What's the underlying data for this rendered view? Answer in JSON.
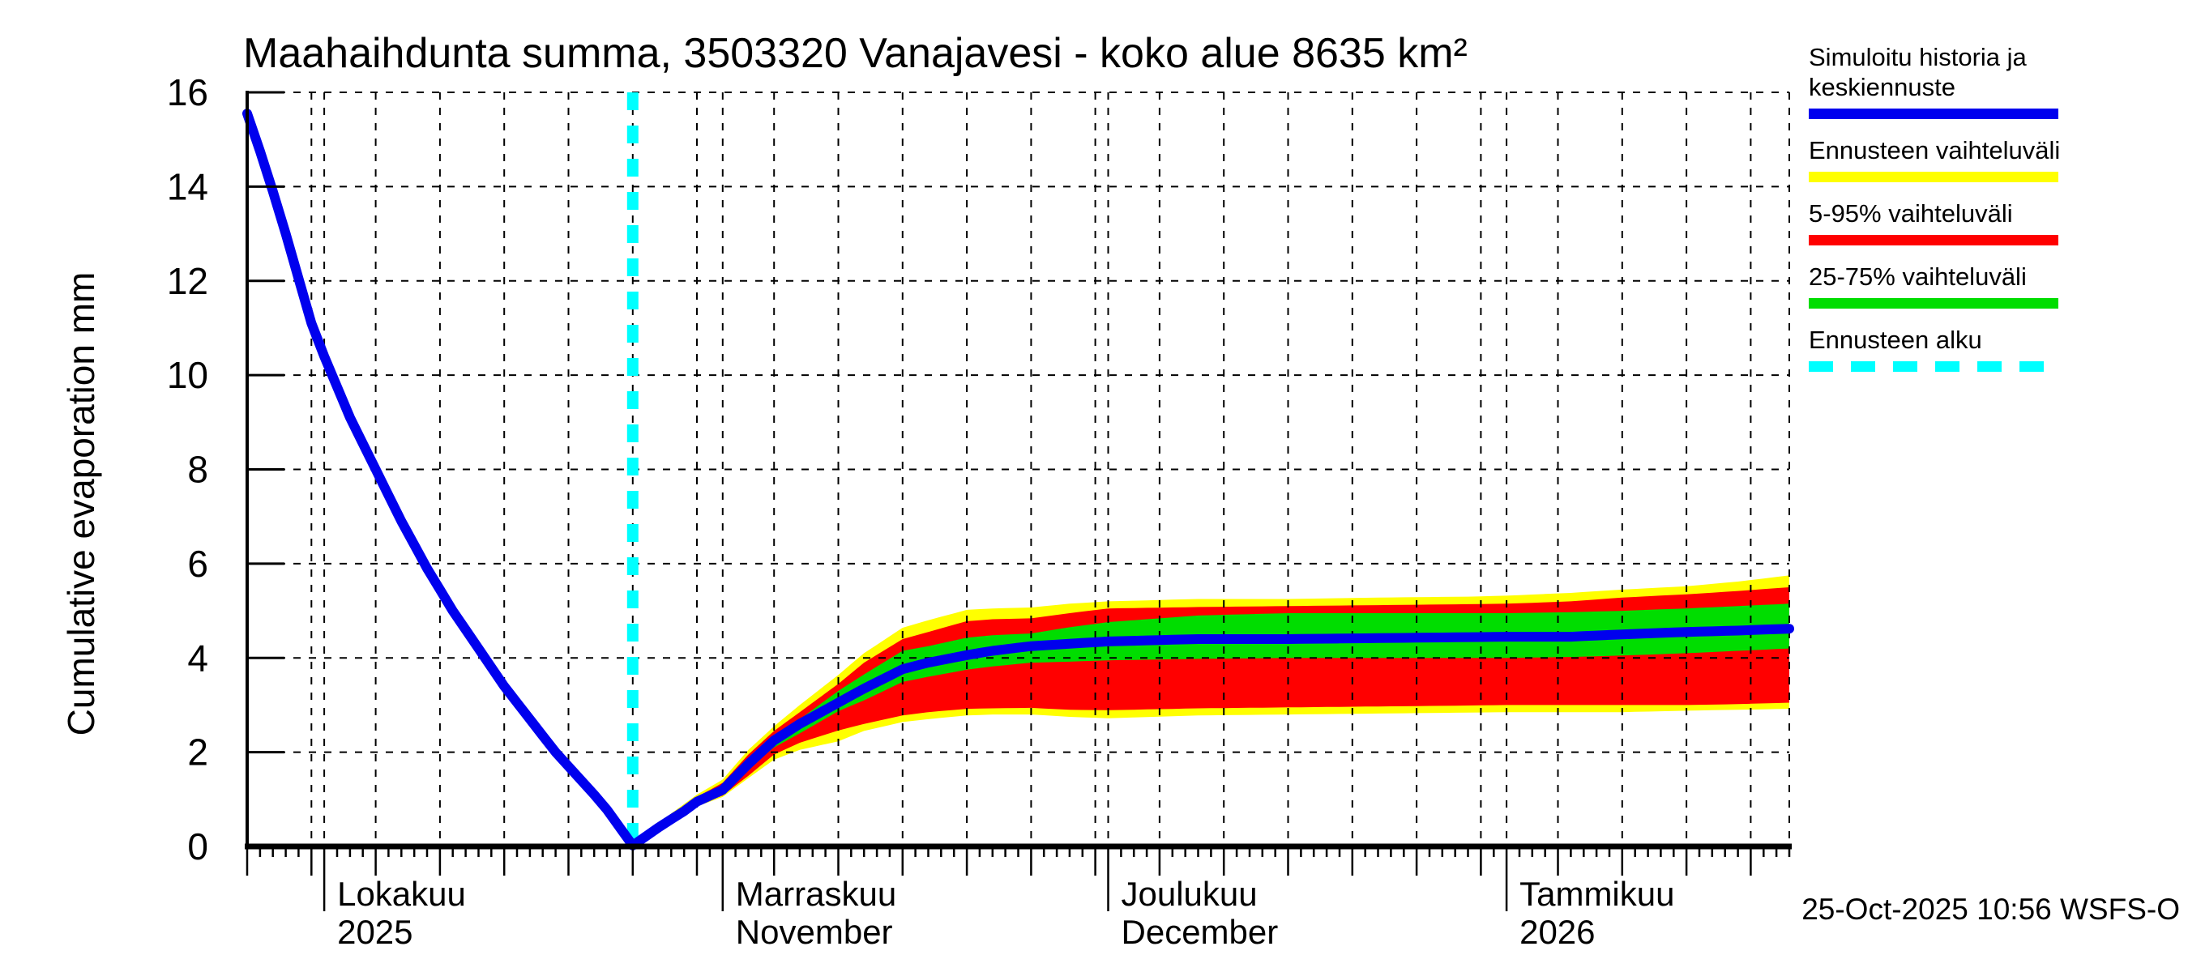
{
  "title": "Maahaihdunta summa, 3503320 Vanajavesi - koko alue 8635 km²",
  "y_axis_label": "Cumulative evaporation  mm",
  "timestamp": "25-Oct-2025 10:56 WSFS-O",
  "colors": {
    "median_line": "#0000ee",
    "range_band": "#ffff00",
    "p5_95_band": "#ff0000",
    "p25_75_band": "#00dd00",
    "forecast_start_line": "#00ffff",
    "grid": "#000000",
    "background": "#ffffff"
  },
  "legend": {
    "items": [
      {
        "label_line1": "Simuloitu historia ja",
        "label_line2": "keskiennuste",
        "color": "#0000ee",
        "style": "solid"
      },
      {
        "label_line1": "Ennusteen vaihteluväli",
        "label_line2": "",
        "color": "#ffff00",
        "style": "solid"
      },
      {
        "label_line1": "5-95% vaihteluväli",
        "label_line2": "",
        "color": "#ff0000",
        "style": "solid"
      },
      {
        "label_line1": "25-75% vaihteluväli",
        "label_line2": "",
        "color": "#00dd00",
        "style": "solid"
      },
      {
        "label_line1": "Ennusteen alku",
        "label_line2": "",
        "color": "#00ffff",
        "style": "dashed"
      }
    ]
  },
  "chart_data": {
    "type": "line",
    "title": "Maahaihdunta summa, 3503320 Vanajavesi - koko alue 8635 km²",
    "ylabel": "Cumulative evaporation mm",
    "ylim": [
      0,
      16
    ],
    "yticks": [
      0,
      2,
      4,
      6,
      8,
      10,
      12,
      14,
      16
    ],
    "x_start_date": "2025-09-25",
    "x_end_date": "2026-01-23",
    "x_total_days": 120,
    "forecast_start_day": 30,
    "grid": true,
    "months": [
      {
        "label_line1": "Lokakuu",
        "label_line2": "2025",
        "day": 6
      },
      {
        "label_line1": "Marraskuu",
        "label_line2": "November",
        "day": 37
      },
      {
        "label_line1": "Joulukuu",
        "label_line2": "December",
        "day": 67
      },
      {
        "label_line1": "Tammikuu",
        "label_line2": "2026",
        "day": 98
      }
    ],
    "history_median_daily": [
      15.55,
      14.75,
      13.9,
      13.0,
      12.05,
      11.1,
      10.4,
      9.75,
      9.1,
      8.55,
      8.0,
      7.45,
      6.9,
      6.4,
      5.9,
      5.45,
      5.0,
      4.6,
      4.2,
      3.8,
      3.4,
      3.05,
      2.7,
      2.35,
      2.0,
      1.7,
      1.4,
      1.1,
      0.78,
      0.4,
      0.02
    ],
    "forecast_median_knots": {
      "days": [
        30,
        32,
        34,
        35,
        37,
        39,
        41,
        43,
        46,
        48,
        51,
        53,
        56,
        58,
        61,
        64,
        67,
        74,
        81,
        88,
        95,
        98,
        103,
        107,
        112,
        116,
        120
      ],
      "values": [
        0.02,
        0.4,
        0.75,
        0.95,
        1.2,
        1.75,
        2.25,
        2.6,
        3.05,
        3.35,
        3.76,
        3.9,
        4.06,
        4.15,
        4.25,
        4.3,
        4.35,
        4.4,
        4.4,
        4.42,
        4.44,
        4.45,
        4.45,
        4.5,
        4.55,
        4.58,
        4.62
      ]
    },
    "bands_knots": {
      "days": [
        30,
        33,
        35,
        37,
        39,
        41,
        43,
        46,
        48,
        51,
        53,
        56,
        58,
        61,
        64,
        67,
        74,
        81,
        88,
        95,
        98,
        103,
        107,
        112,
        116,
        120
      ],
      "min": [
        0.02,
        0.5,
        0.85,
        1.05,
        1.45,
        1.84,
        2.05,
        2.23,
        2.45,
        2.64,
        2.7,
        2.78,
        2.8,
        2.8,
        2.75,
        2.72,
        2.78,
        2.8,
        2.82,
        2.84,
        2.85,
        2.85,
        2.85,
        2.88,
        2.9,
        2.92
      ],
      "p5": [
        0.02,
        0.52,
        0.88,
        1.08,
        1.5,
        1.95,
        2.2,
        2.46,
        2.6,
        2.78,
        2.85,
        2.92,
        2.93,
        2.94,
        2.9,
        2.89,
        2.93,
        2.95,
        2.97,
        2.99,
        3.0,
        3.0,
        3.0,
        3.0,
        3.02,
        3.05
      ],
      "p25": [
        0.02,
        0.55,
        0.92,
        1.15,
        1.65,
        2.1,
        2.4,
        2.87,
        3.1,
        3.49,
        3.6,
        3.75,
        3.82,
        3.9,
        3.92,
        3.95,
        3.98,
        4.0,
        4.0,
        4.0,
        4.0,
        4.02,
        4.05,
        4.1,
        4.15,
        4.2
      ],
      "p75": [
        0.02,
        0.62,
        1.0,
        1.28,
        1.85,
        2.35,
        2.7,
        3.3,
        3.65,
        4.15,
        4.25,
        4.43,
        4.48,
        4.52,
        4.65,
        4.76,
        4.9,
        4.95,
        4.95,
        4.95,
        4.95,
        4.97,
        5.0,
        5.05,
        5.1,
        5.15
      ],
      "p95": [
        0.02,
        0.66,
        1.05,
        1.35,
        1.95,
        2.45,
        2.85,
        3.45,
        3.9,
        4.4,
        4.55,
        4.78,
        4.82,
        4.84,
        4.95,
        5.05,
        5.08,
        5.1,
        5.12,
        5.14,
        5.15,
        5.2,
        5.28,
        5.35,
        5.42,
        5.5
      ],
      "max": [
        0.02,
        0.7,
        1.1,
        1.42,
        2.05,
        2.55,
        3.0,
        3.64,
        4.1,
        4.64,
        4.8,
        5.02,
        5.05,
        5.07,
        5.15,
        5.2,
        5.25,
        5.25,
        5.28,
        5.3,
        5.32,
        5.38,
        5.45,
        5.52,
        5.62,
        5.75
      ]
    },
    "legend_entries": [
      "Simuloitu historia ja keskiennuste",
      "Ennusteen vaihteluväli",
      "5-95% vaihteluväli",
      "25-75% vaihteluväli",
      "Ennusteen alku"
    ],
    "legend_position": "top-right"
  }
}
